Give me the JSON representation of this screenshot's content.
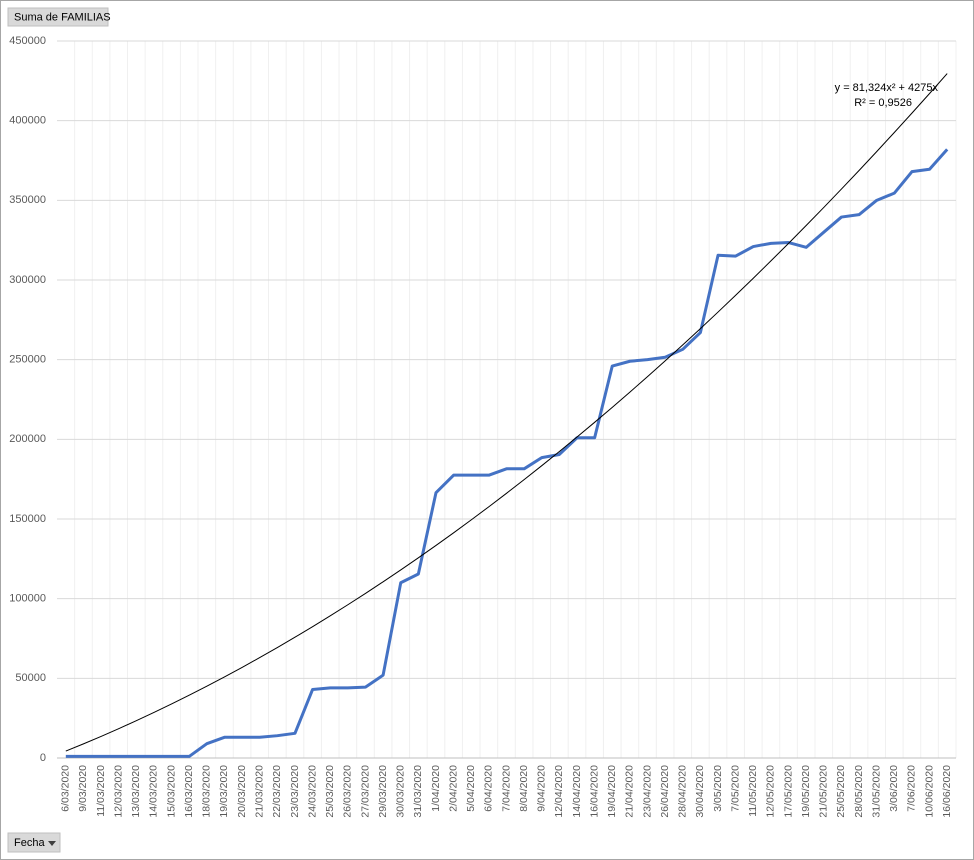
{
  "pivot": {
    "value_field": "Suma de FAMILIAS",
    "axis_field": "Fecha"
  },
  "chart_data": {
    "type": "line",
    "categories": [
      "6/03/2020",
      "9/03/2020",
      "11/03/2020",
      "12/03/2020",
      "13/03/2020",
      "14/03/2020",
      "15/03/2020",
      "16/03/2020",
      "18/03/2020",
      "19/03/2020",
      "20/03/2020",
      "21/03/2020",
      "22/03/2020",
      "23/03/2020",
      "24/03/2020",
      "25/03/2020",
      "26/03/2020",
      "27/03/2020",
      "29/03/2020",
      "30/03/2020",
      "31/03/2020",
      "1/04/2020",
      "2/04/2020",
      "5/04/2020",
      "6/04/2020",
      "7/04/2020",
      "8/04/2020",
      "9/04/2020",
      "12/04/2020",
      "14/04/2020",
      "16/04/2020",
      "19/04/2020",
      "21/04/2020",
      "23/04/2020",
      "26/04/2020",
      "28/04/2020",
      "30/04/2020",
      "3/05/2020",
      "7/05/2020",
      "11/05/2020",
      "12/05/2020",
      "17/05/2020",
      "19/05/2020",
      "21/05/2020",
      "25/05/2020",
      "28/05/2020",
      "31/05/2020",
      "3/06/2020",
      "7/06/2020",
      "10/06/2020",
      "16/06/2020"
    ],
    "series": [
      {
        "name": "Suma de FAMILIAS",
        "color": "#4472c4",
        "values": [
          1000,
          1000,
          1000,
          1000,
          1000,
          1000,
          1000,
          1000,
          9000,
          13000,
          13000,
          13000,
          14000,
          15500,
          43000,
          44000,
          44000,
          44500,
          52000,
          110000,
          115500,
          166500,
          177500,
          177500,
          177500,
          181500,
          181500,
          188500,
          190500,
          201000,
          201000,
          246000,
          249000,
          250000,
          251500,
          256500,
          267000,
          315500,
          315000,
          321000,
          323000,
          323500,
          320500,
          330000,
          339500,
          341000,
          350000,
          354500,
          368000,
          369500,
          382000
        ]
      }
    ],
    "trendline": {
      "type": "polynomial",
      "coefficients": [
        81.324,
        4275
      ],
      "color": "#000000",
      "equation": "y = 81,324x² + 4275x",
      "r_squared": "R² = 0,9526"
    },
    "ylim": [
      0,
      450000
    ],
    "yticks": [
      0,
      50000,
      100000,
      150000,
      200000,
      250000,
      300000,
      350000,
      400000,
      450000
    ],
    "grid": true
  }
}
